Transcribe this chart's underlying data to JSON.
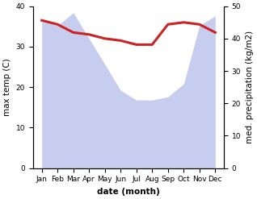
{
  "months": [
    "Jan",
    "Feb",
    "Mar",
    "Apr",
    "May",
    "Jun",
    "Jul",
    "Aug",
    "Sep",
    "Oct",
    "Nov",
    "Dec"
  ],
  "precip_data": [
    46,
    44,
    48,
    40,
    32,
    24,
    21,
    21,
    22,
    26,
    44,
    47
  ],
  "temp_line": [
    36.5,
    35.5,
    33.5,
    33,
    32,
    31.5,
    30.5,
    30.5,
    35.5,
    36,
    35.5,
    33.5
  ],
  "ylim_left": [
    0,
    40
  ],
  "ylim_right": [
    0,
    50
  ],
  "xlabel": "date (month)",
  "ylabel_left": "max temp (C)",
  "ylabel_right": "med. precipitation (kg/m2)",
  "fill_color": "#b0b8e8",
  "fill_alpha": 0.7,
  "line_color": "#cc2222",
  "line_width": 2.2,
  "bg_color": "#ffffff",
  "label_fontsize": 7.5,
  "tick_fontsize": 6.5
}
